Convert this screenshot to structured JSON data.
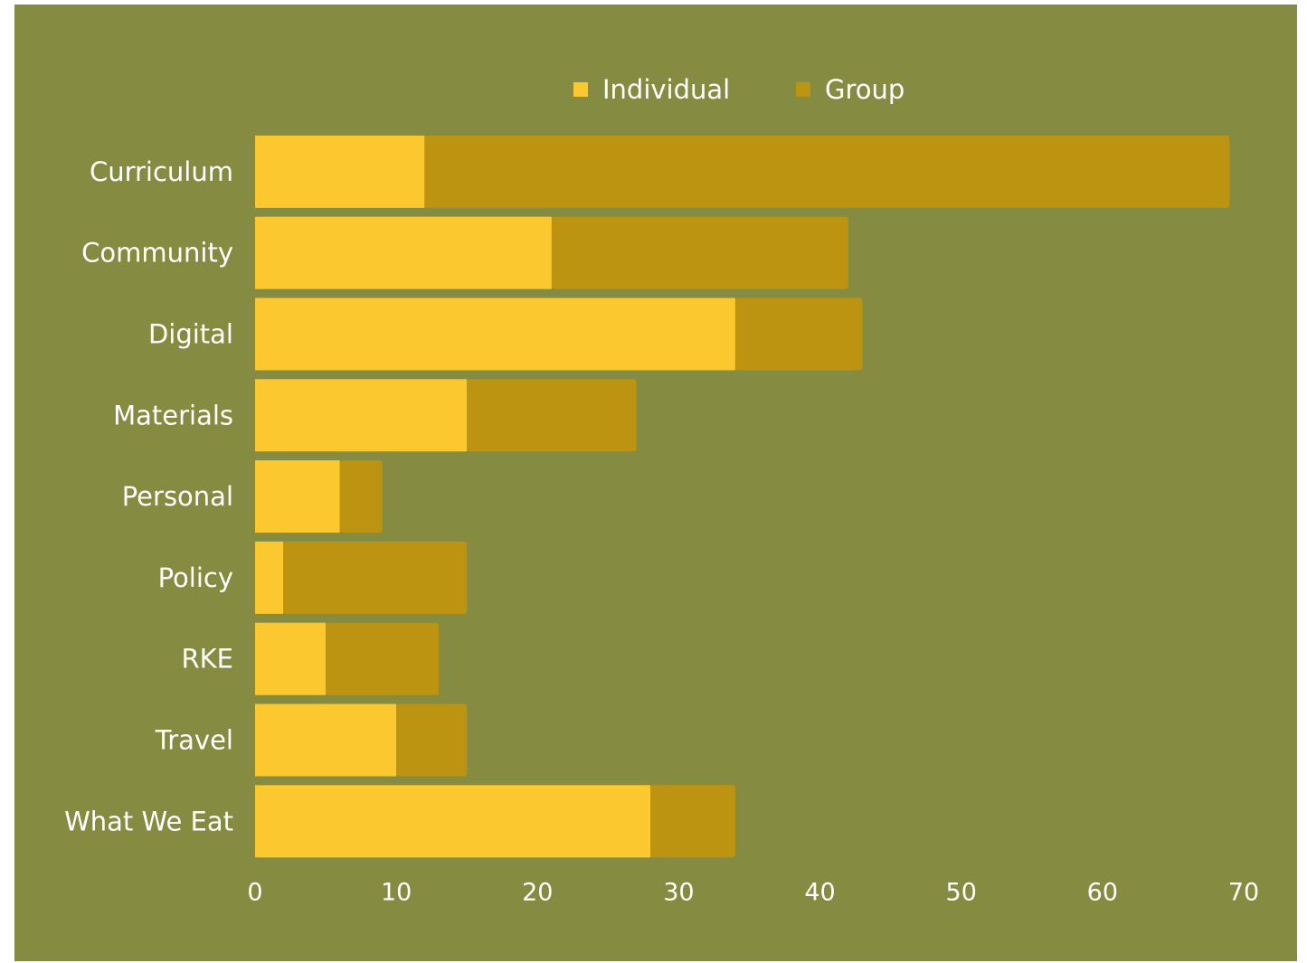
{
  "chart_data": {
    "type": "bar",
    "orientation": "horizontal",
    "stacked": true,
    "title": "",
    "xlabel": "",
    "ylabel": "",
    "categories": [
      "Curriculum",
      "Community",
      "Digital",
      "Materials",
      "Personal",
      "Policy",
      "RKE",
      "Travel",
      "What We Eat"
    ],
    "series": [
      {
        "name": "Individual",
        "color": "#fbc92f",
        "values": [
          12,
          21,
          34,
          15,
          6,
          2,
          5,
          10,
          28
        ]
      },
      {
        "name": "Group",
        "color": "#bc9412",
        "values": [
          57,
          21,
          9,
          12,
          3,
          13,
          8,
          5,
          6
        ]
      }
    ],
    "xlim": [
      0,
      70
    ],
    "xticks": [
      "0",
      "10",
      "20",
      "30",
      "40",
      "50",
      "60",
      "70"
    ],
    "grid": false,
    "legend_position": "top-center",
    "background_color": "#858c42",
    "text_color": "#ffffff"
  }
}
